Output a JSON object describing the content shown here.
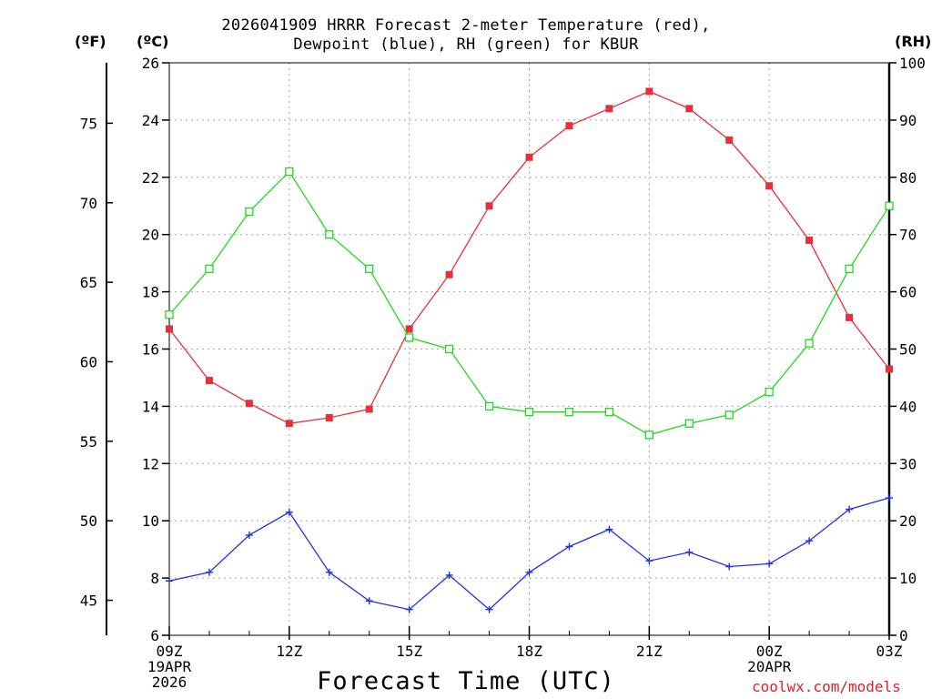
{
  "chart_data": {
    "type": "line",
    "title_line1": "2026041909 HRRR Forecast 2-meter Temperature (red),",
    "title_line2": "Dewpoint (blue), RH (green) for KBUR",
    "xlabel": "Forecast Time (UTC)",
    "credit": "coolwx.com/models",
    "unit_f": "(ºF)",
    "unit_c": "(ºC)",
    "unit_rh": "(RH)",
    "x_hours": [
      0,
      1,
      2,
      3,
      4,
      5,
      6,
      7,
      8,
      9,
      10,
      11,
      12,
      13,
      14,
      15,
      16,
      17,
      18
    ],
    "x_ticks": [
      {
        "hour": 0,
        "lines": [
          "09Z",
          "19APR",
          "2026"
        ]
      },
      {
        "hour": 3,
        "lines": [
          "12Z"
        ]
      },
      {
        "hour": 6,
        "lines": [
          "15Z"
        ]
      },
      {
        "hour": 9,
        "lines": [
          "18Z"
        ]
      },
      {
        "hour": 12,
        "lines": [
          "21Z"
        ]
      },
      {
        "hour": 15,
        "lines": [
          "00Z",
          "20APR"
        ]
      },
      {
        "hour": 18,
        "lines": [
          "03Z"
        ]
      }
    ],
    "c_axis": {
      "range": [
        6,
        26
      ],
      "ticks": [
        6,
        8,
        10,
        12,
        14,
        16,
        18,
        20,
        22,
        24,
        26
      ]
    },
    "f_axis": {
      "range": [
        42.8,
        78.8
      ],
      "ticks": [
        45,
        50,
        55,
        60,
        65,
        70,
        75
      ]
    },
    "rh_axis": {
      "range": [
        0,
        100
      ],
      "ticks": [
        0,
        10,
        20,
        30,
        40,
        50,
        60,
        70,
        80,
        90,
        100
      ]
    },
    "series": [
      {
        "name": "Temperature",
        "axis": "c",
        "color": "#e8303a",
        "marker": "filled-square",
        "values": [
          16.7,
          14.9,
          14.1,
          13.4,
          13.6,
          13.9,
          16.7,
          18.6,
          21.0,
          22.7,
          23.8,
          24.4,
          25.0,
          24.4,
          23.3,
          21.7,
          19.8,
          17.1,
          15.3
        ]
      },
      {
        "name": "Dewpoint",
        "axis": "c",
        "color": "#2030e8",
        "marker": "plus",
        "values": [
          7.9,
          8.2,
          9.5,
          10.3,
          8.2,
          7.2,
          6.9,
          8.1,
          6.9,
          8.2,
          9.1,
          9.7,
          8.6,
          8.9,
          8.4,
          8.5,
          9.3,
          10.4,
          10.8
        ]
      },
      {
        "name": "RH",
        "axis": "rh",
        "color": "#20d820",
        "marker": "open-square",
        "values": [
          56,
          64,
          74,
          81,
          70,
          64,
          52,
          50,
          40,
          39,
          39,
          39,
          35,
          37,
          38.5,
          42.5,
          51,
          64,
          75
        ]
      }
    ]
  }
}
